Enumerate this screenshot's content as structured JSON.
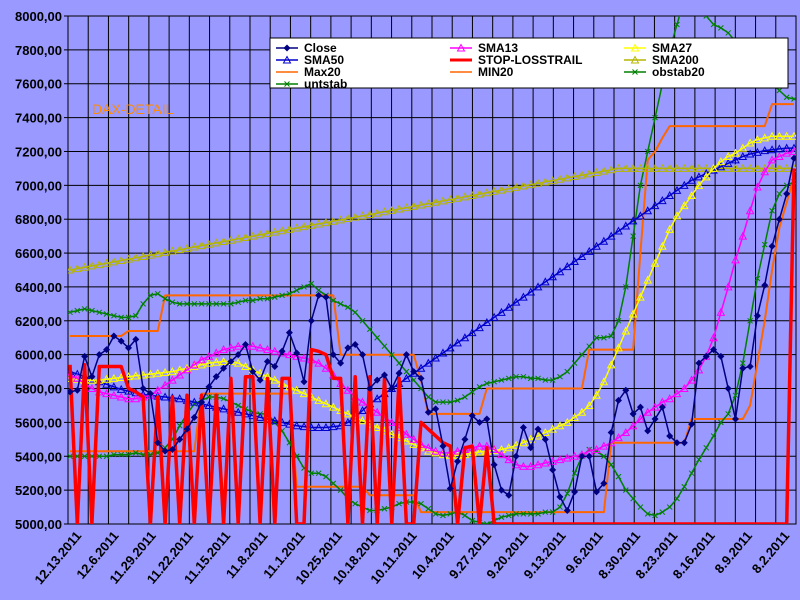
{
  "chart_data": {
    "type": "line",
    "title": "DAX-DETAIL",
    "xlabel": "",
    "ylabel": "",
    "ylim": [
      5000,
      8000
    ],
    "y_ticks": [
      "5000,00",
      "5200,00",
      "5400,00",
      "5600,00",
      "5800,00",
      "6000,00",
      "6200,00",
      "6400,00",
      "6600,00",
      "6800,00",
      "7000,00",
      "7200,00",
      "7400,00",
      "7600,00",
      "7800,00",
      "8000,00"
    ],
    "x_tick_labels": [
      "12.13.2011",
      "12.6.2011",
      "11.29.2011",
      "11.22.2011",
      "11.15.2011",
      "11.8.2011",
      "11.1.2011",
      "10.25.2011",
      "10.18.2011",
      "10.11.2011",
      "10.4.2011",
      "9.27.2011",
      "9.20.2011",
      "9.13.2011",
      "9.6.2011",
      "8.30.2011",
      "8.23.2011",
      "8.16.2011",
      "8.9.2011",
      "8.2.2011"
    ],
    "x_count": 100,
    "grid": true,
    "legend_position": "top-right",
    "colors": {
      "plot_background": "#9999ff",
      "chart_background": "#9999ff",
      "grid": "#000000"
    },
    "series": [
      {
        "name": "Close",
        "color": "#000080",
        "marker": "diamond",
        "values": [
          5780,
          5790,
          5990,
          5870,
          6000,
          6030,
          6110,
          6080,
          6040,
          6090,
          5800,
          5770,
          5480,
          5430,
          5440,
          5500,
          5560,
          5630,
          5720,
          5810,
          5870,
          5920,
          5960,
          6000,
          6060,
          5900,
          5850,
          5960,
          5930,
          6020,
          6130,
          6010,
          5840,
          6200,
          6350,
          6340,
          6000,
          5950,
          6040,
          6060,
          6000,
          5800,
          5850,
          5880,
          5800,
          5890,
          6000,
          5900,
          5860,
          5660,
          5680,
          5460,
          5210,
          5370,
          5500,
          5640,
          5600,
          5620,
          5350,
          5200,
          5170,
          5400,
          5570,
          5450,
          5560,
          5500,
          5320,
          5160,
          5080,
          5190,
          5400,
          5400,
          5190,
          5240,
          5540,
          5730,
          5790,
          5650,
          5690,
          5550,
          5620,
          5690,
          5520,
          5480,
          5480,
          5590,
          5950,
          5990,
          6030,
          5990,
          5800,
          5620,
          5920,
          5930,
          6230,
          6410,
          6640,
          6800,
          6950,
          7160
        ]
      },
      {
        "name": "SMA13",
        "color": "#ff00ff",
        "marker": "triangle",
        "values": [
          5880,
          5860,
          5830,
          5800,
          5780,
          5770,
          5760,
          5750,
          5740,
          5740,
          5750,
          5760,
          5790,
          5820,
          5850,
          5880,
          5910,
          5940,
          5970,
          5990,
          6010,
          6030,
          6040,
          6050,
          6050,
          6050,
          6040,
          6030,
          6020,
          6010,
          6000,
          5990,
          5980,
          5970,
          5950,
          5920,
          5880,
          5830,
          5790,
          5750,
          5720,
          5690,
          5660,
          5630,
          5600,
          5570,
          5530,
          5500,
          5470,
          5450,
          5430,
          5420,
          5420,
          5430,
          5440,
          5450,
          5460,
          5460,
          5440,
          5410,
          5380,
          5350,
          5340,
          5340,
          5350,
          5360,
          5370,
          5380,
          5390,
          5400,
          5410,
          5430,
          5440,
          5460,
          5480,
          5510,
          5540,
          5580,
          5620,
          5660,
          5690,
          5720,
          5740,
          5770,
          5800,
          5850,
          5910,
          5990,
          6100,
          6250,
          6400,
          6560,
          6700,
          6850,
          6990,
          7080,
          7150,
          7170,
          7190,
          7200
        ]
      },
      {
        "name": "SMA27",
        "color": "#ffff00",
        "marker": "triangle",
        "values": [
          5860,
          5855,
          5850,
          5850,
          5850,
          5855,
          5860,
          5865,
          5870,
          5875,
          5880,
          5885,
          5890,
          5895,
          5900,
          5910,
          5920,
          5930,
          5940,
          5950,
          5955,
          5960,
          5960,
          5950,
          5930,
          5910,
          5890,
          5870,
          5850,
          5830,
          5810,
          5790,
          5770,
          5750,
          5730,
          5710,
          5690,
          5670,
          5650,
          5630,
          5610,
          5590,
          5570,
          5550,
          5530,
          5510,
          5490,
          5470,
          5450,
          5430,
          5420,
          5410,
          5405,
          5405,
          5410,
          5420,
          5425,
          5430,
          5435,
          5440,
          5450,
          5465,
          5480,
          5500,
          5520,
          5540,
          5560,
          5580,
          5600,
          5630,
          5660,
          5700,
          5760,
          5840,
          5940,
          6040,
          6140,
          6240,
          6340,
          6440,
          6540,
          6640,
          6740,
          6820,
          6880,
          6940,
          7000,
          7050,
          7100,
          7140,
          7170,
          7190,
          7220,
          7250,
          7270,
          7280,
          7290,
          7290,
          7290,
          7290
        ]
      },
      {
        "name": "SMA50",
        "color": "#0000cc",
        "marker": "triangle",
        "values": [
          5900,
          5885,
          5870,
          5855,
          5840,
          5825,
          5810,
          5795,
          5785,
          5775,
          5765,
          5760,
          5755,
          5750,
          5745,
          5740,
          5730,
          5720,
          5710,
          5700,
          5690,
          5680,
          5670,
          5660,
          5650,
          5640,
          5630,
          5620,
          5610,
          5600,
          5590,
          5580,
          5575,
          5570,
          5570,
          5570,
          5575,
          5580,
          5600,
          5630,
          5670,
          5710,
          5740,
          5770,
          5800,
          5830,
          5860,
          5890,
          5920,
          5950,
          5980,
          6010,
          6040,
          6070,
          6100,
          6130,
          6160,
          6190,
          6220,
          6250,
          6280,
          6310,
          6340,
          6370,
          6400,
          6430,
          6460,
          6490,
          6520,
          6550,
          6580,
          6610,
          6640,
          6670,
          6700,
          6730,
          6760,
          6790,
          6820,
          6850,
          6880,
          6910,
          6940,
          6970,
          7000,
          7030,
          7050,
          7070,
          7090,
          7110,
          7130,
          7150,
          7170,
          7185,
          7195,
          7205,
          7210,
          7215,
          7220,
          7220
        ]
      },
      {
        "name": "STOP-LOSSTRAIL",
        "color": "#ff0000",
        "marker": "none",
        "values": [
          5940,
          5000,
          5940,
          5000,
          5930,
          5930,
          5930,
          5930,
          5800,
          5780,
          5750,
          5000,
          5750,
          5000,
          5750,
          5000,
          5760,
          5000,
          5760,
          5000,
          5760,
          5000,
          5860,
          5000,
          5870,
          5870,
          5000,
          5860,
          5000,
          5860,
          5860,
          5000,
          5000,
          6030,
          6020,
          6000,
          5860,
          5860,
          5000,
          5870,
          5000,
          5870,
          5000,
          5860,
          5000,
          5860,
          5000,
          5000,
          5600,
          5560,
          5520,
          5480,
          5460,
          5000,
          5450,
          5460,
          5000,
          5450,
          5000,
          5000,
          5000,
          5000,
          5000,
          5000,
          5000,
          5000,
          5000,
          5000,
          5000,
          5000,
          5000,
          5000,
          5000,
          5000,
          5000,
          5000,
          5000,
          5000,
          5000,
          5000,
          5000,
          5000,
          5000,
          5000,
          5000,
          5000,
          5000,
          5000,
          5000,
          5000,
          5000,
          5000,
          5000,
          5000,
          5000,
          5000,
          5000,
          5000,
          5000,
          7100
        ]
      },
      {
        "name": "SMA200",
        "color": "#b5b500",
        "marker": "triangle",
        "values": [
          6500,
          6508,
          6516,
          6524,
          6532,
          6540,
          6548,
          6556,
          6564,
          6572,
          6580,
          6588,
          6596,
          6604,
          6612,
          6620,
          6628,
          6636,
          6644,
          6652,
          6660,
          6668,
          6676,
          6684,
          6692,
          6700,
          6708,
          6716,
          6724,
          6732,
          6740,
          6748,
          6756,
          6764,
          6772,
          6780,
          6788,
          6796,
          6804,
          6812,
          6820,
          6828,
          6836,
          6844,
          6852,
          6860,
          6868,
          6876,
          6884,
          6892,
          6900,
          6908,
          6916,
          6924,
          6932,
          6940,
          6948,
          6956,
          6964,
          6972,
          6980,
          6988,
          6996,
          7004,
          7012,
          7020,
          7028,
          7036,
          7044,
          7052,
          7060,
          7068,
          7076,
          7084,
          7092,
          7100,
          7100,
          7100,
          7100,
          7100,
          7100,
          7100,
          7100,
          7100,
          7100,
          7100,
          7100,
          7100,
          7100,
          7100,
          7100,
          7100,
          7100,
          7100,
          7100,
          7100,
          7100,
          7100,
          7100,
          7100
        ]
      },
      {
        "name": "Max20",
        "color": "#ff6600",
        "marker": "none",
        "values": [
          6110,
          6110,
          6110,
          6110,
          6110,
          6110,
          6110,
          6110,
          6140,
          6140,
          6140,
          6140,
          6140,
          6350,
          6350,
          6350,
          6350,
          6350,
          6350,
          6350,
          6350,
          6350,
          6350,
          6350,
          6350,
          6350,
          6350,
          6350,
          6350,
          6350,
          6350,
          6350,
          6350,
          6350,
          6350,
          6350,
          6350,
          6000,
          6000,
          6000,
          6000,
          6000,
          6000,
          6000,
          6000,
          6000,
          6000,
          6000,
          5850,
          5650,
          5650,
          5650,
          5650,
          5650,
          5650,
          5650,
          5650,
          5800,
          5800,
          5800,
          5800,
          5800,
          5800,
          5800,
          5800,
          5800,
          5800,
          5800,
          5800,
          5800,
          5800,
          6030,
          6030,
          6030,
          6030,
          6030,
          6030,
          6030,
          6600,
          7150,
          7200,
          7280,
          7350,
          7350,
          7350,
          7350,
          7350,
          7350,
          7350,
          7350,
          7350,
          7350,
          7350,
          7350,
          7350,
          7350,
          7480,
          7480,
          7480,
          7480
        ]
      },
      {
        "name": "MIN20",
        "color": "#ff6600",
        "marker": "none",
        "values": [
          5430,
          5430,
          5430,
          5430,
          5430,
          5430,
          5430,
          5430,
          5430,
          5430,
          5430,
          5430,
          5430,
          5430,
          5430,
          5430,
          5430,
          5430,
          5770,
          5770,
          5770,
          5770,
          5770,
          5770,
          5770,
          5770,
          5770,
          5770,
          5770,
          5770,
          5770,
          5220,
          5220,
          5220,
          5220,
          5220,
          5220,
          5220,
          5220,
          5220,
          5220,
          5170,
          5170,
          5170,
          5170,
          5170,
          5170,
          5170,
          5070,
          5070,
          5070,
          5070,
          5070,
          5070,
          5070,
          5070,
          5070,
          5070,
          5070,
          5070,
          5070,
          5070,
          5070,
          5070,
          5070,
          5070,
          5070,
          5070,
          5070,
          5070,
          5070,
          5070,
          5070,
          5070,
          5480,
          5480,
          5480,
          5480,
          5480,
          5480,
          5480,
          5480,
          5480,
          5480,
          5480,
          5620,
          5620,
          5620,
          5620,
          5620,
          5620,
          5620,
          5620,
          5700,
          5950,
          6200,
          6500,
          6750,
          6900,
          7050
        ]
      },
      {
        "name": "obstab20",
        "color": "#008000",
        "marker": "x",
        "values": [
          6250,
          6260,
          6270,
          6260,
          6250,
          6240,
          6230,
          6220,
          6220,
          6230,
          6300,
          6350,
          6360,
          6330,
          6310,
          6300,
          6300,
          6300,
          6300,
          6300,
          6300,
          6300,
          6300,
          6310,
          6320,
          6320,
          6330,
          6330,
          6340,
          6350,
          6360,
          6380,
          6400,
          6420,
          6380,
          6350,
          6320,
          6300,
          6280,
          6250,
          6200,
          6150,
          6100,
          6050,
          6000,
          5950,
          5900,
          5850,
          5800,
          5750,
          5720,
          5720,
          5720,
          5730,
          5750,
          5780,
          5810,
          5830,
          5840,
          5850,
          5860,
          5870,
          5870,
          5860,
          5860,
          5850,
          5850,
          5870,
          5900,
          5950,
          6000,
          6050,
          6100,
          6100,
          6110,
          6200,
          6400,
          6700,
          7000,
          7200,
          7400,
          7600,
          7800,
          7950,
          8100,
          8100,
          8050,
          8000,
          7950,
          7930,
          7900,
          7850,
          7800,
          7750,
          7700,
          7650,
          7600,
          7560,
          7520,
          7510
        ]
      },
      {
        "name": "untstab",
        "color": "#008000",
        "marker": "x",
        "values": [
          5400,
          5400,
          5400,
          5400,
          5400,
          5400,
          5410,
          5410,
          5410,
          5420,
          5410,
          5410,
          5420,
          5450,
          5500,
          5580,
          5650,
          5710,
          5730,
          5750,
          5750,
          5740,
          5720,
          5700,
          5680,
          5660,
          5650,
          5650,
          5600,
          5550,
          5480,
          5400,
          5330,
          5300,
          5300,
          5280,
          5240,
          5200,
          5150,
          5120,
          5100,
          5080,
          5080,
          5090,
          5100,
          5120,
          5130,
          5130,
          5120,
          5090,
          5060,
          5050,
          5060,
          5070,
          5050,
          5020,
          5010,
          5000,
          5020,
          5040,
          5050,
          5060,
          5060,
          5060,
          5060,
          5070,
          5070,
          5100,
          5180,
          5300,
          5400,
          5440,
          5430,
          5400,
          5350,
          5280,
          5200,
          5150,
          5100,
          5060,
          5050,
          5070,
          5100,
          5150,
          5220,
          5300,
          5380,
          5450,
          5520,
          5600,
          5650,
          5760,
          5950,
          6200,
          6450,
          6650,
          6850,
          6950,
          7000,
          7020
        ]
      }
    ]
  }
}
